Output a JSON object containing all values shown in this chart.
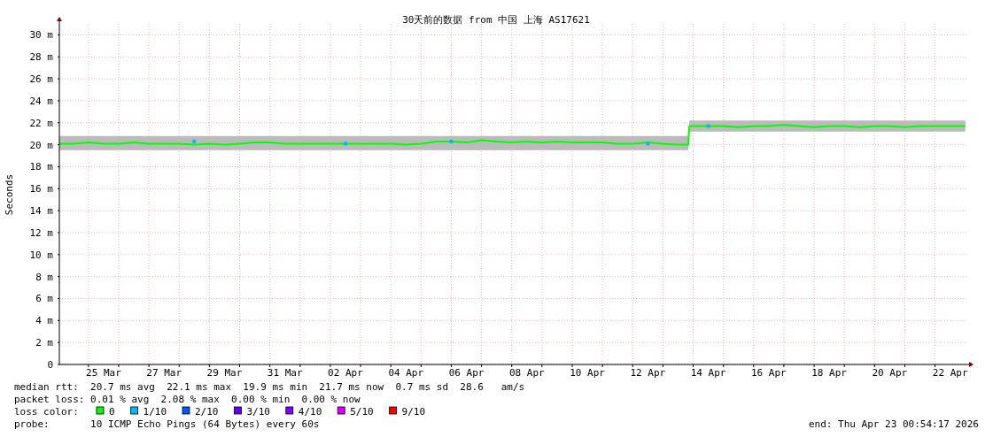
{
  "chart_data": {
    "type": "line",
    "title": "30天前的数据 from 中国 上海 AS17621",
    "ylabel": "Seconds",
    "xlim": [
      "2026-03-24T00:54",
      "2026-04-23T00:54"
    ],
    "xticks": [
      {
        "value": "2026-03-25T12:00",
        "label": "25 Mar"
      },
      {
        "value": "2026-03-27T12:00",
        "label": "27 Mar"
      },
      {
        "value": "2026-03-29T12:00",
        "label": "29 Mar"
      },
      {
        "value": "2026-03-31T12:00",
        "label": "31 Mar"
      },
      {
        "value": "2026-04-02T12:00",
        "label": "02 Apr"
      },
      {
        "value": "2026-04-04T12:00",
        "label": "04 Apr"
      },
      {
        "value": "2026-04-06T12:00",
        "label": "06 Apr"
      },
      {
        "value": "2026-04-08T12:00",
        "label": "08 Apr"
      },
      {
        "value": "2026-04-10T12:00",
        "label": "10 Apr"
      },
      {
        "value": "2026-04-12T12:00",
        "label": "12 Apr"
      },
      {
        "value": "2026-04-14T12:00",
        "label": "14 Apr"
      },
      {
        "value": "2026-04-16T12:00",
        "label": "16 Apr"
      },
      {
        "value": "2026-04-18T12:00",
        "label": "18 Apr"
      },
      {
        "value": "2026-04-20T12:00",
        "label": "20 Apr"
      },
      {
        "value": "2026-04-22T12:00",
        "label": "22 Apr"
      },
      {
        "value": "2026-03-25",
        "label": null
      },
      {
        "value": "2026-03-26",
        "label": null
      },
      {
        "value": "2026-03-27",
        "label": null
      },
      {
        "value": "2026-03-28",
        "label": null
      },
      {
        "value": "2026-03-29",
        "label": null
      },
      {
        "value": "2026-03-30",
        "label": null
      },
      {
        "value": "2026-03-31",
        "label": null
      },
      {
        "value": "2026-04-01",
        "label": null
      },
      {
        "value": "2026-04-02",
        "label": null
      },
      {
        "value": "2026-04-03",
        "label": null
      },
      {
        "value": "2026-04-04",
        "label": null
      },
      {
        "value": "2026-04-05",
        "label": null
      },
      {
        "value": "2026-04-06",
        "label": null
      },
      {
        "value": "2026-04-07",
        "label": null
      },
      {
        "value": "2026-04-08",
        "label": null
      },
      {
        "value": "2026-04-09",
        "label": null
      },
      {
        "value": "2026-04-10",
        "label": null
      },
      {
        "value": "2026-04-11",
        "label": null
      },
      {
        "value": "2026-04-12",
        "label": null
      },
      {
        "value": "2026-04-13",
        "label": null
      },
      {
        "value": "2026-04-14",
        "label": null
      },
      {
        "value": "2026-04-15",
        "label": null
      },
      {
        "value": "2026-04-16",
        "label": null
      },
      {
        "value": "2026-04-17",
        "label": null
      },
      {
        "value": "2026-04-18",
        "label": null
      },
      {
        "value": "2026-04-19",
        "label": null
      },
      {
        "value": "2026-04-20",
        "label": null
      },
      {
        "value": "2026-04-21",
        "label": null
      },
      {
        "value": "2026-04-22",
        "label": null
      }
    ],
    "ylim": [
      0,
      31
    ],
    "yticks": [
      {
        "value": 0,
        "label": "0"
      },
      {
        "value": 2,
        "label": "2 m"
      },
      {
        "value": 4,
        "label": "4 m"
      },
      {
        "value": 6,
        "label": "6 m"
      },
      {
        "value": 8,
        "label": "8 m"
      },
      {
        "value": 10,
        "label": "10 m"
      },
      {
        "value": 12,
        "label": "12 m"
      },
      {
        "value": 14,
        "label": "14 m"
      },
      {
        "value": 16,
        "label": "16 m"
      },
      {
        "value": 18,
        "label": "18 m"
      },
      {
        "value": 20,
        "label": "20 m"
      },
      {
        "value": 22,
        "label": "22 m"
      },
      {
        "value": 24,
        "label": "24 m"
      },
      {
        "value": 26,
        "label": "26 m"
      },
      {
        "value": 28,
        "label": "28 m"
      },
      {
        "value": 30,
        "label": "30 m"
      }
    ],
    "grid": true,
    "legend": "bottom",
    "legend_title": "loss color:",
    "series": [
      {
        "name": "0",
        "color": "#00ff00",
        "x": [
          "2026-03-24T01:00",
          "2026-03-24T12:00",
          "2026-03-25T00:00",
          "2026-03-25T12:00",
          "2026-03-26T00:00",
          "2026-03-26T12:00",
          "2026-03-27T00:00",
          "2026-03-27T12:00",
          "2026-03-28T00:00",
          "2026-03-28T12:00",
          "2026-03-29T00:00",
          "2026-03-29T12:00",
          "2026-03-30T00:00",
          "2026-03-30T12:00",
          "2026-03-31T00:00",
          "2026-03-31T12:00",
          "2026-04-01T00:00",
          "2026-04-01T12:00",
          "2026-04-02T00:00",
          "2026-04-02T12:00",
          "2026-04-03T00:00",
          "2026-04-03T12:00",
          "2026-04-04T00:00",
          "2026-04-04T12:00",
          "2026-04-05T00:00",
          "2026-04-05T12:00",
          "2026-04-06T00:00",
          "2026-04-06T12:00",
          "2026-04-07T00:00",
          "2026-04-07T12:00",
          "2026-04-08T00:00",
          "2026-04-08T12:00",
          "2026-04-09T00:00",
          "2026-04-09T12:00",
          "2026-04-10T00:00",
          "2026-04-10T12:00",
          "2026-04-11T00:00",
          "2026-04-11T12:00",
          "2026-04-12T00:00",
          "2026-04-12T12:00",
          "2026-04-13T00:00",
          "2026-04-13T12:00",
          "2026-04-13T20:00",
          "2026-04-13T21:00",
          "2026-04-14T12:00",
          "2026-04-15T00:00",
          "2026-04-15T12:00",
          "2026-04-16T00:00",
          "2026-04-16T12:00",
          "2026-04-17T00:00",
          "2026-04-17T12:00",
          "2026-04-18T00:00",
          "2026-04-18T12:00",
          "2026-04-19T00:00",
          "2026-04-19T12:00",
          "2026-04-20T00:00",
          "2026-04-20T12:00",
          "2026-04-21T00:00",
          "2026-04-21T12:00",
          "2026-04-22T00:00",
          "2026-04-23T00:00"
        ],
        "values": [
          20.1,
          20.1,
          20.2,
          20.1,
          20.1,
          20.2,
          20.1,
          20.1,
          20.1,
          20.0,
          20.1,
          20.0,
          20.1,
          20.2,
          20.2,
          20.1,
          20.1,
          20.1,
          20.1,
          20.1,
          20.1,
          20.1,
          20.1,
          20.0,
          20.1,
          20.3,
          20.3,
          20.2,
          20.4,
          20.3,
          20.2,
          20.3,
          20.2,
          20.3,
          20.2,
          20.2,
          20.2,
          20.1,
          20.1,
          20.2,
          20.1,
          20.0,
          20.0,
          21.7,
          21.7,
          21.7,
          21.6,
          21.7,
          21.7,
          21.8,
          21.7,
          21.6,
          21.7,
          21.7,
          21.6,
          21.7,
          21.7,
          21.6,
          21.7,
          21.7,
          21.7
        ],
        "lower": [
          19.5,
          19.5,
          19.5,
          19.5,
          19.5,
          19.5,
          19.5,
          19.5,
          19.5,
          19.5,
          19.5,
          19.5,
          19.5,
          19.5,
          19.5,
          19.5,
          19.5,
          19.5,
          19.5,
          19.5,
          19.5,
          19.5,
          19.5,
          19.5,
          19.5,
          19.5,
          19.5,
          19.5,
          19.5,
          19.5,
          19.5,
          19.5,
          19.5,
          19.5,
          19.5,
          19.5,
          19.5,
          19.5,
          19.5,
          19.5,
          19.5,
          19.5,
          19.5,
          21.2,
          21.2,
          21.2,
          21.2,
          21.2,
          21.2,
          21.2,
          21.2,
          21.2,
          21.2,
          21.2,
          21.2,
          21.2,
          21.2,
          21.2,
          21.2,
          21.2,
          21.2
        ],
        "upper": [
          20.8,
          20.8,
          20.8,
          20.8,
          20.8,
          20.8,
          20.8,
          20.8,
          20.8,
          20.8,
          20.8,
          20.8,
          20.8,
          20.8,
          20.8,
          20.8,
          20.8,
          20.8,
          20.8,
          20.8,
          20.8,
          20.8,
          20.8,
          20.8,
          20.8,
          20.8,
          20.8,
          20.8,
          20.8,
          20.8,
          20.8,
          20.8,
          20.8,
          20.8,
          20.8,
          20.8,
          20.8,
          20.8,
          20.8,
          20.8,
          20.8,
          20.8,
          20.8,
          22.2,
          22.2,
          22.2,
          22.2,
          22.2,
          22.2,
          22.2,
          22.2,
          22.2,
          22.2,
          22.2,
          22.2,
          22.2,
          22.2,
          22.2,
          22.2,
          22.2,
          22.2
        ]
      },
      {
        "name": "1/10",
        "color": "#00b8ff",
        "type": "scatter",
        "marker": "square",
        "x": [
          "2026-03-28T12:00",
          "2026-04-02T12:00",
          "2026-04-06T00:00",
          "2026-04-12T12:00",
          "2026-04-14T12:00"
        ],
        "values": [
          20.3,
          20.1,
          20.3,
          20.1,
          21.7
        ]
      },
      {
        "name": "2/10",
        "color": "#0059ff",
        "type": "scatter",
        "marker": "square"
      },
      {
        "name": "3/10",
        "color": "#5e00ff",
        "type": "scatter",
        "marker": "square"
      },
      {
        "name": "4/10",
        "color": "#7e00ff",
        "type": "scatter",
        "marker": "square"
      },
      {
        "name": "5/10",
        "color": "#dd00ff",
        "type": "scatter",
        "marker": "square"
      },
      {
        "name": "9/10",
        "color": "#ff0000",
        "type": "scatter",
        "marker": "square"
      }
    ],
    "annotations": [
      "median rtt:  20.7 ms avg  22.1 ms max  19.9 ms min  21.7 ms now  0.7 ms sd  28.6   am/s",
      "packet loss: 0.01 % avg  2.08 % max  0.00 % min  0.00 % now",
      "probe:       10 ICMP Echo Pings (64 Bytes) every 60s",
      "end: Thu Apr 23 00:54:17 2026"
    ]
  }
}
